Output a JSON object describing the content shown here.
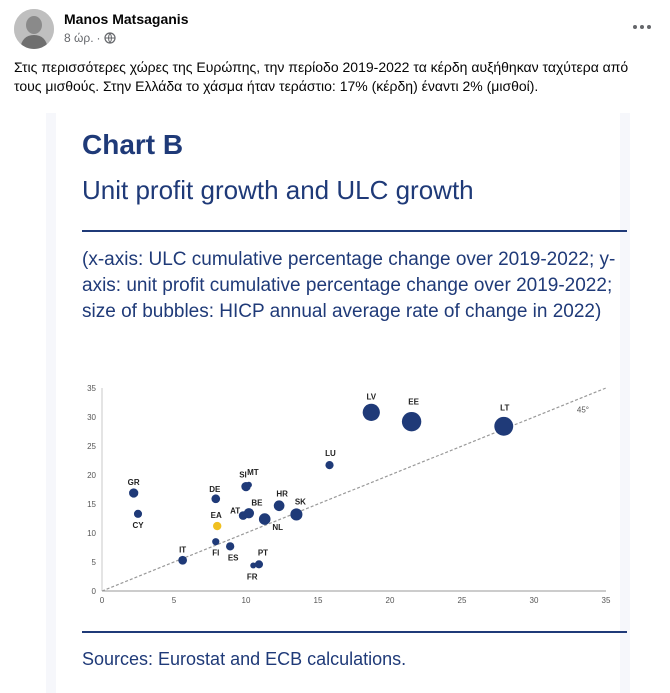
{
  "post": {
    "author": "Manos Matsaganis",
    "time": "8 ώρ.",
    "separator": "·",
    "text": "Στις περισσότερες χώρες της Ευρώπης, την περίοδο 2019-2022 τα κέρδη αυξήθηκαν ταχύτερα από τους μισθούς. Στην Ελλάδα το χάσμα ήταν τεράστιο: 17% (κέρδη) έναντι 2% (μισθοί)."
  },
  "icons": {
    "more": "more-options-icon",
    "audience": "globe-icon",
    "avatar": "avatar"
  },
  "chart": {
    "label": "Chart B",
    "title": "Unit profit growth and ULC growth",
    "subtitle": "(x-axis: ULC cumulative percentage change over 2019-2022; y-axis: unit profit cumulative percentage change over 2019-2022; size of bubbles: HICP annual average rate of change in 2022)",
    "source": "Sources: Eurostat and ECB calculations."
  },
  "chart_data": {
    "type": "scatter",
    "title": "Unit profit growth and ULC growth",
    "xlim": [
      0,
      35
    ],
    "ylim": [
      0,
      35
    ],
    "xticks": [
      0,
      5,
      10,
      15,
      20,
      25,
      30,
      35
    ],
    "yticks": [
      0,
      5,
      10,
      15,
      20,
      25,
      30,
      35
    ],
    "reference_line": {
      "label": "45°",
      "style": "dashed"
    },
    "colors": {
      "points": "#1f3a78",
      "highlight": "#f0c020",
      "reference": "#999999"
    },
    "points": [
      {
        "label": "GR",
        "x": 2.2,
        "y": 16.9,
        "size": 9.3
      },
      {
        "label": "CY",
        "x": 2.5,
        "y": 13.3,
        "size": 8.1
      },
      {
        "label": "IT",
        "x": 5.6,
        "y": 5.3,
        "size": 8.7
      },
      {
        "label": "DE",
        "x": 7.9,
        "y": 15.9,
        "size": 8.7
      },
      {
        "label": "EA",
        "x": 8.0,
        "y": 11.2,
        "size": 8.4,
        "highlight": true
      },
      {
        "label": "FI",
        "x": 7.9,
        "y": 8.5,
        "size": 7.2
      },
      {
        "label": "ES",
        "x": 8.9,
        "y": 7.7,
        "size": 8.3
      },
      {
        "label": "SI",
        "x": 10.0,
        "y": 18.0,
        "size": 9.3
      },
      {
        "label": "MT",
        "x": 10.2,
        "y": 18.3,
        "size": 6.1
      },
      {
        "label": "AT",
        "x": 9.8,
        "y": 13.0,
        "size": 8.6
      },
      {
        "label": "BE",
        "x": 10.2,
        "y": 13.4,
        "size": 10.3
      },
      {
        "label": "FR",
        "x": 10.5,
        "y": 4.4,
        "size": 5.9
      },
      {
        "label": "PT",
        "x": 10.9,
        "y": 4.6,
        "size": 8.1
      },
      {
        "label": "NL",
        "x": 11.3,
        "y": 12.4,
        "size": 11.6
      },
      {
        "label": "HR",
        "x": 12.3,
        "y": 14.7,
        "size": 10.7
      },
      {
        "label": "SK",
        "x": 13.5,
        "y": 13.2,
        "size": 12.1
      },
      {
        "label": "LU",
        "x": 15.8,
        "y": 21.7,
        "size": 8.2
      },
      {
        "label": "LV",
        "x": 18.7,
        "y": 30.8,
        "size": 17.2
      },
      {
        "label": "EE",
        "x": 21.5,
        "y": 29.2,
        "size": 19.4
      },
      {
        "label": "LT",
        "x": 27.9,
        "y": 28.4,
        "size": 18.9
      }
    ]
  }
}
